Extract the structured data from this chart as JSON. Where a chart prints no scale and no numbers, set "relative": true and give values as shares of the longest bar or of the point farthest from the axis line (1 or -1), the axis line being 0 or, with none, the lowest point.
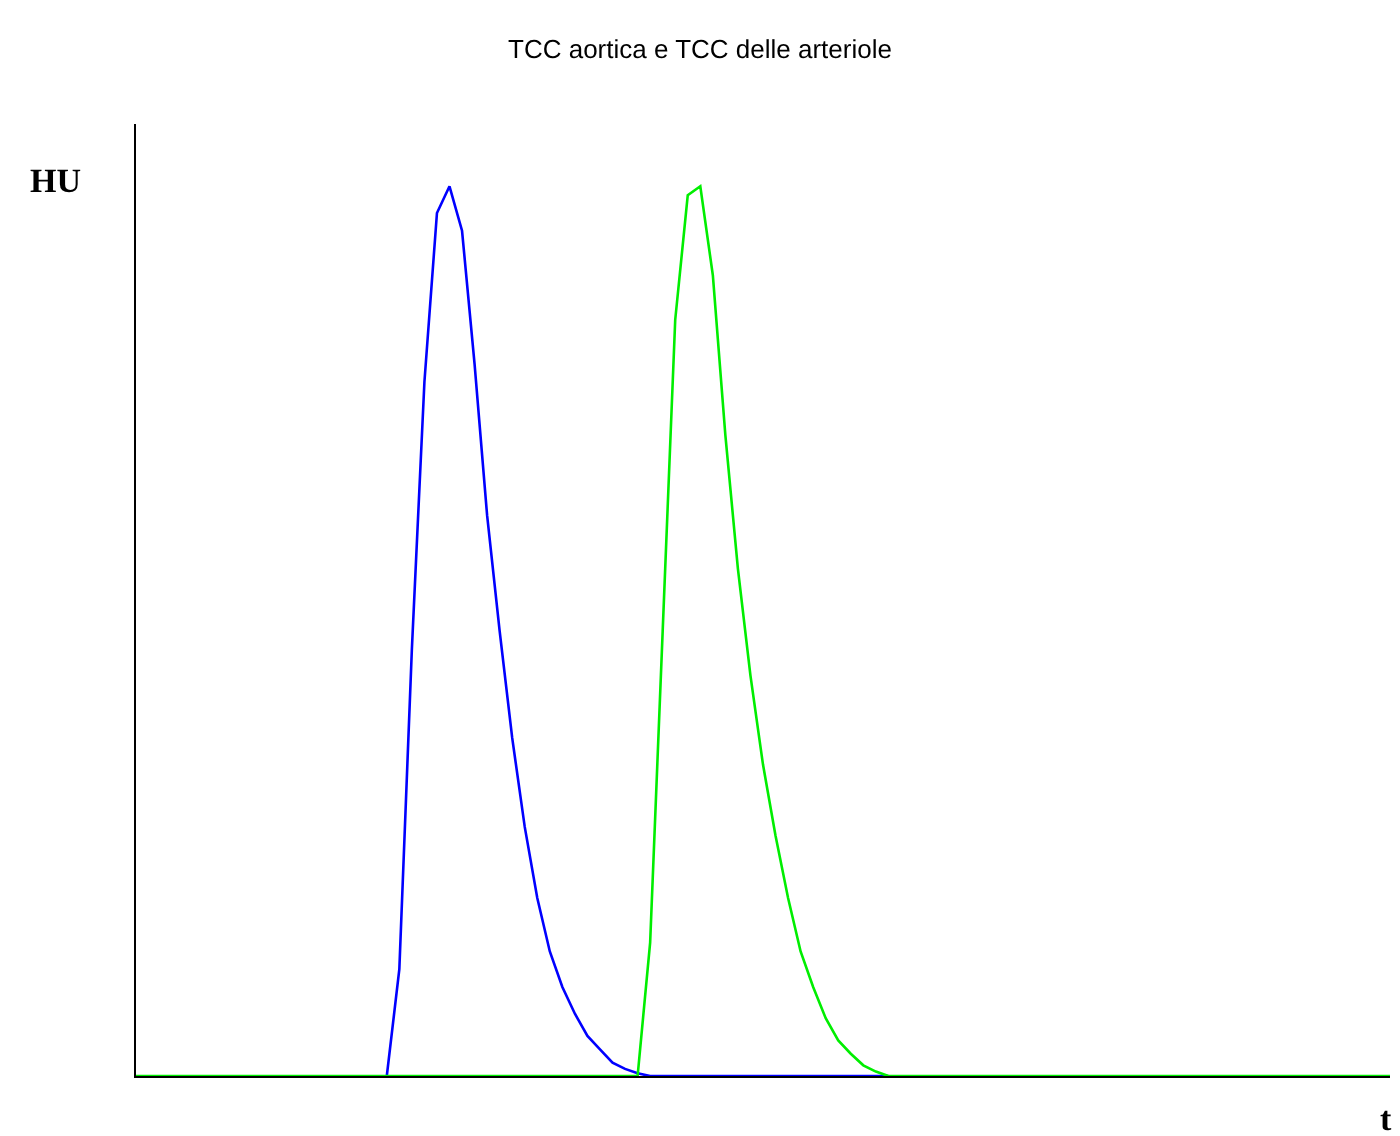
{
  "chart_data": {
    "type": "line",
    "title": "TCC aortica e TCC delle arteriole",
    "xlabel": "t",
    "ylabel": "HU",
    "relative": true,
    "marker": "none",
    "line_style": "solid",
    "categories": [
      null,
      null,
      null,
      null,
      null,
      null,
      null,
      null,
      null,
      null,
      null,
      null,
      null,
      null,
      null,
      null,
      null,
      null,
      null,
      null,
      null,
      null,
      null,
      null,
      null,
      null,
      null,
      null,
      null,
      null,
      null,
      null,
      null,
      null,
      null,
      null,
      null,
      null,
      null,
      null,
      null,
      null,
      null,
      null,
      null,
      null,
      null,
      null,
      null,
      null,
      null,
      null,
      null,
      null,
      null,
      null,
      null,
      null,
      null,
      null,
      null,
      null,
      null,
      null,
      null,
      null,
      null,
      null,
      null,
      null,
      null,
      null,
      null,
      null,
      null,
      null,
      null,
      null,
      null,
      null,
      null,
      null,
      null,
      null,
      null,
      null,
      null,
      null,
      null,
      null,
      null,
      null,
      null,
      null,
      null,
      null,
      null,
      null,
      null,
      null,
      null
    ],
    "series": [
      {
        "color": "#0000ff",
        "values": [
          null,
          null,
          null,
          null,
          null,
          null,
          null,
          null,
          null,
          null,
          null,
          null,
          null,
          null,
          null,
          null,
          null,
          null,
          null,
          null,
          0,
          0.12,
          0.48,
          0.78,
          0.97,
          1,
          0.95,
          0.8,
          0.63,
          0.5,
          0.38,
          0.28,
          0.2,
          0.14,
          0.1,
          0.07,
          0.045,
          0.03,
          0.015,
          0.008,
          0.003,
          0,
          0,
          0,
          0,
          0,
          0,
          0,
          0,
          0,
          0,
          0,
          0,
          0,
          0,
          0,
          0,
          0,
          0,
          0,
          0,
          null,
          null,
          null,
          null,
          null,
          null,
          null,
          null,
          null,
          null,
          null,
          null,
          null,
          null,
          null,
          null,
          null,
          null,
          null,
          null,
          null,
          null,
          null,
          null,
          null,
          null,
          null,
          null,
          null,
          null,
          null,
          null,
          null,
          null,
          null,
          null,
          null,
          null,
          null,
          null
        ]
      },
      {
        "color": "#00ee00",
        "values": [
          0,
          0,
          0,
          0,
          0,
          0,
          0,
          0,
          0,
          0,
          0,
          0,
          0,
          0,
          0,
          0,
          0,
          0,
          0,
          0,
          0,
          0,
          0,
          0,
          0,
          0,
          0,
          0,
          0,
          0,
          0,
          0,
          0,
          0,
          0,
          0,
          0,
          0,
          0,
          0,
          0,
          0.15,
          0.5,
          0.85,
          0.99,
          1,
          0.9,
          0.72,
          0.57,
          0.45,
          0.35,
          0.27,
          0.2,
          0.14,
          0.1,
          0.065,
          0.04,
          0.025,
          0.012,
          0.005,
          0,
          0,
          0,
          0,
          0,
          0,
          0,
          0,
          0,
          0,
          0,
          0,
          0,
          0,
          0,
          0,
          0,
          0,
          0,
          0,
          0,
          0,
          0,
          0,
          0,
          0,
          0,
          0,
          0,
          0,
          0,
          0,
          0,
          0,
          0,
          0,
          0,
          0,
          0,
          0,
          0
        ]
      }
    ]
  }
}
